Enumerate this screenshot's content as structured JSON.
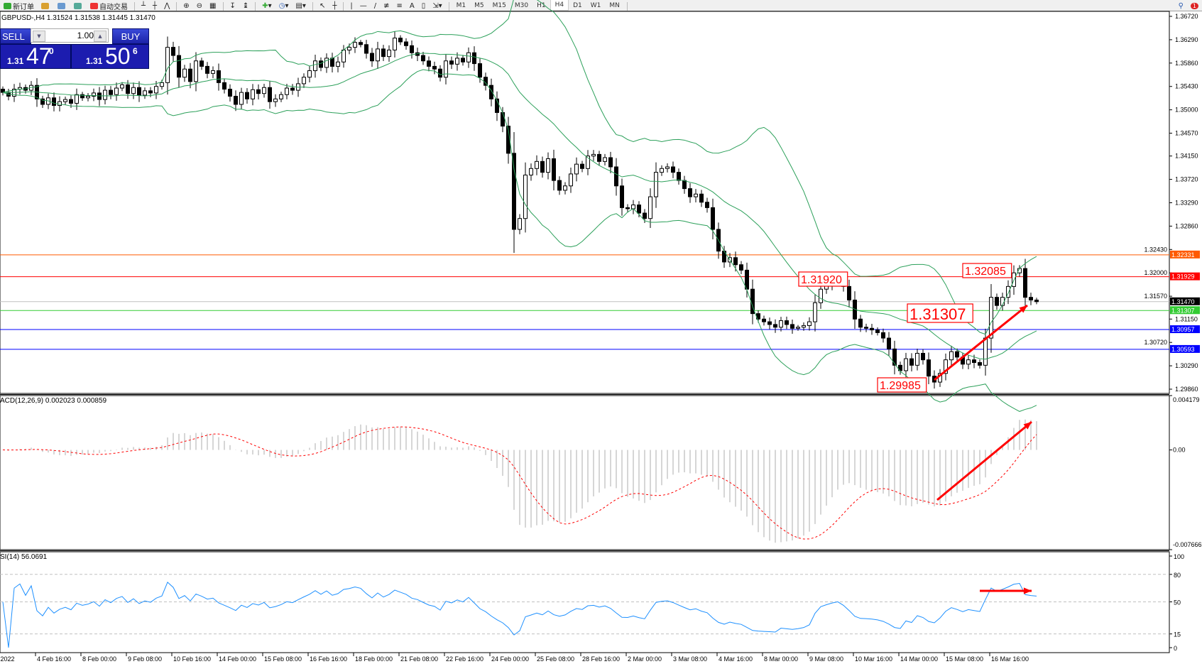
{
  "toolbar": {
    "new_order": "新订单",
    "auto_trading": "自动交易",
    "timeframes": [
      "M1",
      "M5",
      "M15",
      "M30",
      "H1",
      "H4",
      "D1",
      "W1",
      "MN"
    ],
    "active_timeframe": "H4",
    "notification_count": "1"
  },
  "symbol_info": "GBPUSD-,H4  1.31524 1.31538 1.31445 1.31470",
  "trade_panel": {
    "sell_label": "SELL",
    "buy_label": "BUY",
    "lot": "1.00",
    "sell_price": {
      "prefix": "1.31",
      "big": "47",
      "sup": "0"
    },
    "buy_price": {
      "prefix": "1.31",
      "big": "50",
      "sup": "6"
    }
  },
  "colors": {
    "bollinger": "#2ca05a",
    "candle_up": "#ffffff",
    "candle_down": "#000000",
    "macd_hist": "#c0c0c0",
    "macd_signal": "#ff0000",
    "rsi": "#1e90ff",
    "annotation": "#ff0000"
  },
  "chart_data": [
    {
      "type": "candlestick",
      "symbol": "GBPUSD-",
      "timeframe": "H4",
      "ylim": [
        1.2986,
        1.3672
      ],
      "y_ticks": [
        "1.36720",
        "1.36290",
        "1.35860",
        "1.35430",
        "1.35000",
        "1.34570",
        "1.34150",
        "1.33720",
        "1.33290",
        "1.32860",
        "1.32430",
        "1.32000",
        "1.31570",
        "1.31150",
        "1.30720",
        "1.30290",
        "1.29860"
      ],
      "x_ticks": [
        "eb 2022",
        "4 Feb 16:00",
        "8 Feb 00:00",
        "9 Feb 08:00",
        "10 Feb 16:00",
        "14 Feb 00:00",
        "15 Feb 08:00",
        "16 Feb 16:00",
        "18 Feb 00:00",
        "21 Feb 08:00",
        "22 Feb 16:00",
        "24 Feb 00:00",
        "25 Feb 08:00",
        "28 Feb 16:00",
        "2 Mar 00:00",
        "3 Mar 08:00",
        "4 Mar 16:00",
        "8 Mar 00:00",
        "9 Mar 08:00",
        "10 Mar 16:00",
        "14 Mar 00:00",
        "15 Mar 08:00",
        "16 Mar 16:00"
      ],
      "indicator": "Bollinger Bands",
      "closes": [
        1.3532,
        1.3525,
        1.3538,
        1.3541,
        1.3536,
        1.3545,
        1.352,
        1.351,
        1.3522,
        1.3508,
        1.3515,
        1.3519,
        1.3512,
        1.3528,
        1.3522,
        1.3525,
        1.3531,
        1.3519,
        1.3536,
        1.3528,
        1.354,
        1.3546,
        1.353,
        1.3541,
        1.3527,
        1.3535,
        1.3531,
        1.3543,
        1.355,
        1.3615,
        1.36,
        1.356,
        1.3575,
        1.3552,
        1.359,
        1.358,
        1.3567,
        1.3572,
        1.355,
        1.3538,
        1.3525,
        1.351,
        1.3532,
        1.352,
        1.3537,
        1.353,
        1.3541,
        1.3515,
        1.352,
        1.3528,
        1.354,
        1.3536,
        1.3548,
        1.356,
        1.3572,
        1.359,
        1.3578,
        1.3595,
        1.358,
        1.3588,
        1.361,
        1.3615,
        1.3624,
        1.362,
        1.3604,
        1.359,
        1.3612,
        1.3598,
        1.361,
        1.3632,
        1.3625,
        1.3618,
        1.3605,
        1.36,
        1.359,
        1.358,
        1.3575,
        1.356,
        1.359,
        1.3584,
        1.3595,
        1.3588,
        1.3605,
        1.3585,
        1.356,
        1.3545,
        1.352,
        1.3495,
        1.347,
        1.342,
        1.328,
        1.33,
        1.338,
        1.3392,
        1.3405,
        1.3385,
        1.341,
        1.337,
        1.3352,
        1.336,
        1.3382,
        1.34,
        1.3392,
        1.3415,
        1.3418,
        1.3405,
        1.3412,
        1.3395,
        1.336,
        1.332,
        1.3318,
        1.3325,
        1.331,
        1.33,
        1.334,
        1.3385,
        1.3392,
        1.3395,
        1.3385,
        1.337,
        1.3355,
        1.334,
        1.3345,
        1.333,
        1.332,
        1.328,
        1.324,
        1.322,
        1.3228,
        1.3215,
        1.3205,
        1.317,
        1.3125,
        1.3115,
        1.311,
        1.3105,
        1.31,
        1.3112,
        1.3105,
        1.3098,
        1.31,
        1.3103,
        1.311,
        1.3145,
        1.317,
        1.3178,
        1.3185,
        1.319,
        1.3175,
        1.315,
        1.3115,
        1.31,
        1.3098,
        1.3095,
        1.309,
        1.308,
        1.306,
        1.303,
        1.302,
        1.3042,
        1.303,
        1.3052,
        1.304,
        1.301,
        1.2999,
        1.3015,
        1.304,
        1.3055,
        1.3045,
        1.3032,
        1.304,
        1.3035,
        1.303,
        1.308,
        1.3155,
        1.314,
        1.3155,
        1.3175,
        1.32,
        1.3208,
        1.3155,
        1.315,
        1.3147
      ],
      "horizontal_lines": [
        {
          "price": "1.32331",
          "color": "#ff5a00"
        },
        {
          "price": "1.31929",
          "color": "#ff0000"
        },
        {
          "price": "1.31470",
          "color": "#000000",
          "line_color": "#c0c0c0"
        },
        {
          "price": "1.31307",
          "color": "#33cc33"
        },
        {
          "price": "1.30957",
          "color": "#0000ff"
        },
        {
          "price": "1.30593",
          "color": "#0000ff"
        }
      ],
      "annotations": [
        "1.31920",
        "1.32085",
        "1.31307",
        "1.29985"
      ]
    },
    {
      "type": "histogram+line",
      "title": "ACD(12,26,9) 0.002023 0.000859",
      "ylim": [
        -0.007666,
        0.004179
      ],
      "y_ticks": [
        "0.004179",
        "0.00",
        "-0.007666"
      ]
    },
    {
      "type": "line",
      "title": "SI(14) 56.0691",
      "ylim": [
        0,
        100
      ],
      "levels": [
        80,
        50,
        15
      ],
      "y_ticks": [
        "100",
        "80",
        "50",
        "15",
        "0"
      ]
    }
  ]
}
